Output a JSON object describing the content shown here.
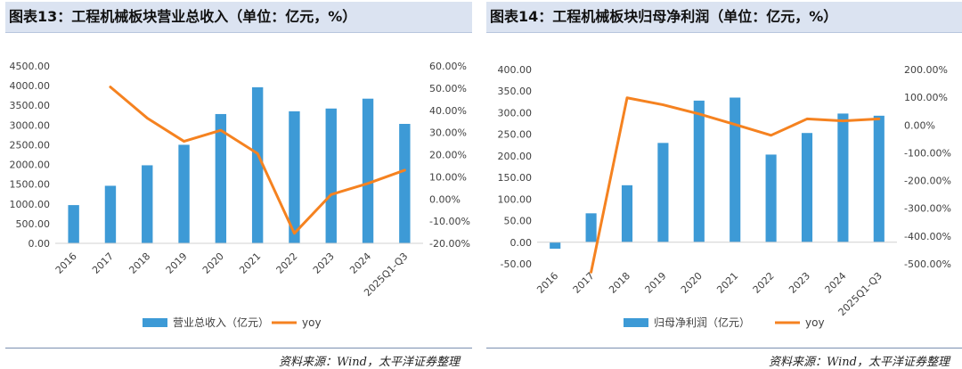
{
  "charts": [
    {
      "title": "图表13：工程机械板块营业总收入（单位：亿元，%）",
      "source": "资料来源：Wind，太平洋证券整理"
    },
    {
      "title": "图表14：工程机械板块归母净利润（单位：亿元，%）",
      "source": "资料来源：Wind，太平洋证券整理"
    }
  ],
  "chart_data": [
    {
      "type": "bar",
      "title": "图表13：工程机械板块营业总收入（单位：亿元，%）",
      "categories": [
        "2016",
        "2017",
        "2018",
        "2019",
        "2020",
        "2021",
        "2022",
        "2023",
        "2024",
        "2025Q1-Q3"
      ],
      "series": [
        {
          "name": "营业总收入（亿元）",
          "type": "bar",
          "axis": "left",
          "values": [
            970,
            1460,
            1980,
            2500,
            3280,
            3960,
            3350,
            3420,
            3670,
            3030
          ]
        },
        {
          "name": "yoy",
          "type": "line",
          "axis": "right",
          "values": [
            null,
            50.5,
            36.5,
            26.0,
            31.0,
            20.5,
            -15.5,
            2.0,
            7.0,
            13.0
          ]
        }
      ],
      "ylim": [
        0,
        4500
      ],
      "y_ticks": [
        "4500.00",
        "4000.00",
        "3500.00",
        "3000.00",
        "2500.00",
        "2000.00",
        "1500.00",
        "1000.00",
        "500.00",
        "0.00"
      ],
      "y2lim": [
        -20,
        60
      ],
      "y2_ticks": [
        "60.00%",
        "50.00%",
        "40.00%",
        "30.00%",
        "20.00%",
        "10.00%",
        "0.00%",
        "-10.00%",
        "-20.00%"
      ],
      "legend": [
        "营业总收入（亿元）",
        "yoy"
      ],
      "colors": {
        "bar": "#3d9ad6",
        "line": "#f58220"
      }
    },
    {
      "type": "bar",
      "title": "图表14：工程机械板块归母净利润（单位：亿元，%）",
      "categories": [
        "2016",
        "2017",
        "2018",
        "2019",
        "2020",
        "2021",
        "2022",
        "2023",
        "2024",
        "2025Q1-Q3"
      ],
      "series": [
        {
          "name": "归母净利润（亿元）",
          "type": "bar",
          "axis": "left",
          "values": [
            -15,
            67,
            132,
            230,
            328,
            335,
            203,
            253,
            298,
            293
          ]
        },
        {
          "name": "yoy",
          "type": "line",
          "axis": "right",
          "values": [
            null,
            -530,
            98,
            73,
            40,
            2,
            -37,
            22,
            15,
            22
          ]
        }
      ],
      "ylim": [
        -50,
        400
      ],
      "y_ticks": [
        "400.00",
        "350.00",
        "300.00",
        "250.00",
        "200.00",
        "150.00",
        "100.00",
        "50.00",
        "0.00",
        "-50.00"
      ],
      "y2lim": [
        -500,
        200
      ],
      "y2_ticks": [
        "200.00%",
        "100.00%",
        "0.00%",
        "-100.00%",
        "-200.00%",
        "-300.00%",
        "-400.00%",
        "-500.00%"
      ],
      "legend": [
        "归母净利润（亿元）",
        "yoy"
      ],
      "colors": {
        "bar": "#3d9ad6",
        "line": "#f58220"
      }
    }
  ]
}
